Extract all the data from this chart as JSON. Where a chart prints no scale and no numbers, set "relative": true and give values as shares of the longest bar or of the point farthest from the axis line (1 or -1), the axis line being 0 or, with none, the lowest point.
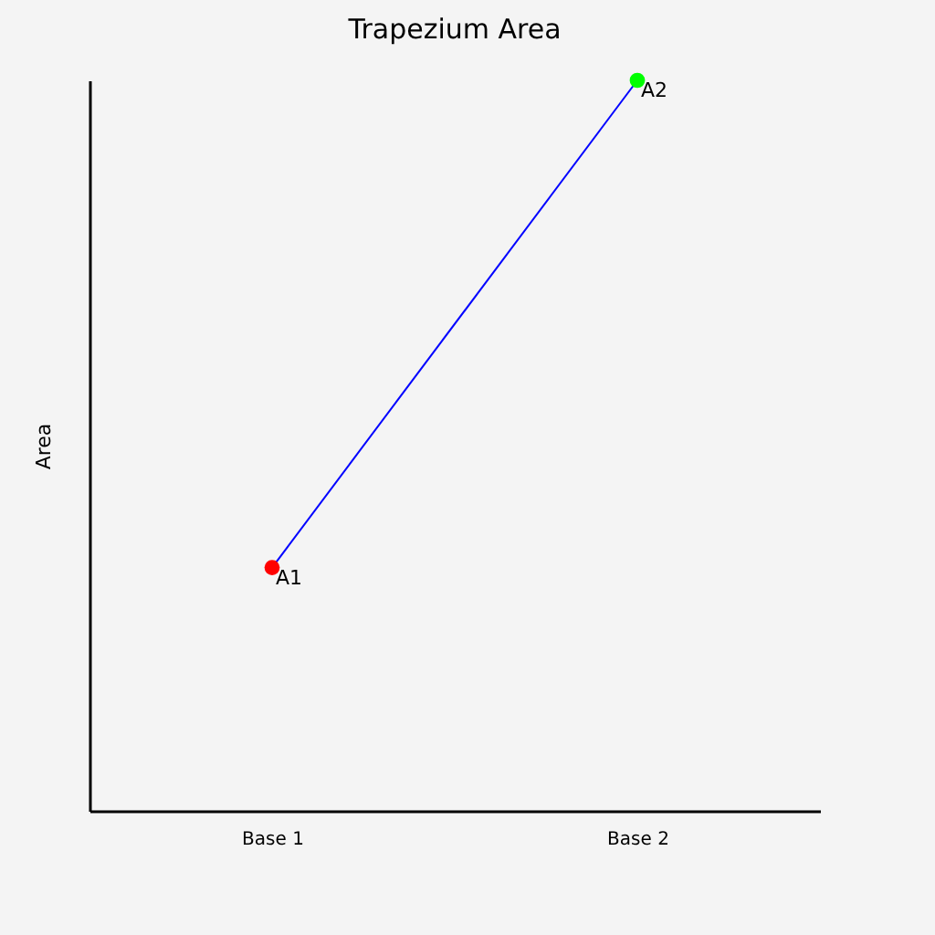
{
  "chart_data": {
    "type": "line",
    "title": "Trapezium Area",
    "ylabel": "Area",
    "categories": [
      "Base 1",
      "Base 2"
    ],
    "relative": true,
    "marker": "circle",
    "line_style": "solid",
    "grid": false,
    "series": [
      {
        "color": "#0000ff",
        "colors": [
          "#ff0000",
          "#00ff00"
        ],
        "values": [
          0.333,
          1
        ]
      }
    ],
    "annotations": [
      {
        "text": "A1",
        "x": "Base 1",
        "y": 0.333
      },
      {
        "text": "A2",
        "x": "Base 2",
        "y": 1
      }
    ]
  }
}
